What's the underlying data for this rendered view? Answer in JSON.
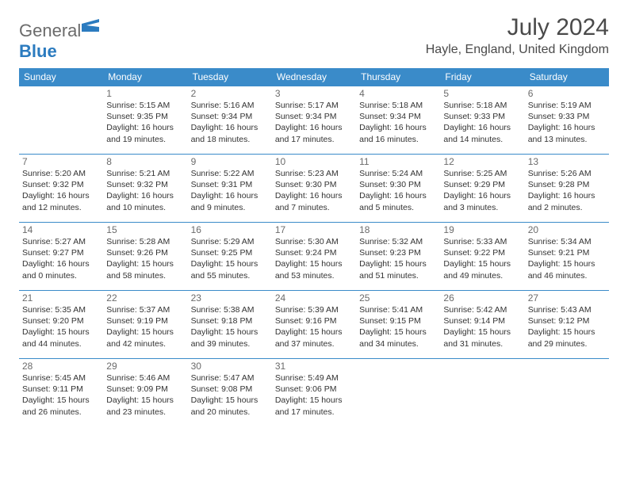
{
  "brand": {
    "part1": "General",
    "part2": "Blue"
  },
  "title": {
    "month": "July 2024",
    "location": "Hayle, England, United Kingdom"
  },
  "colors": {
    "header_bg": "#3a8bc9",
    "header_text": "#ffffff",
    "border": "#3a8bc9",
    "daynum": "#6b6b6b",
    "body_text": "#333333",
    "logo_gray": "#6b6b6b",
    "logo_blue": "#2b7bbf",
    "title_color": "#4a4a4a",
    "background": "#ffffff"
  },
  "typography": {
    "month_fontsize": 30,
    "location_fontsize": 16,
    "dayheader_fontsize": 12,
    "daynum_fontsize": 12,
    "info_fontsize": 10.5
  },
  "layout": {
    "columns": 7,
    "rows": 5,
    "first_day_column": 1
  },
  "day_headers": [
    "Sunday",
    "Monday",
    "Tuesday",
    "Wednesday",
    "Thursday",
    "Friday",
    "Saturday"
  ],
  "days": [
    {
      "n": 1,
      "sunrise": "5:15 AM",
      "sunset": "9:35 PM",
      "daylight": "16 hours and 19 minutes."
    },
    {
      "n": 2,
      "sunrise": "5:16 AM",
      "sunset": "9:34 PM",
      "daylight": "16 hours and 18 minutes."
    },
    {
      "n": 3,
      "sunrise": "5:17 AM",
      "sunset": "9:34 PM",
      "daylight": "16 hours and 17 minutes."
    },
    {
      "n": 4,
      "sunrise": "5:18 AM",
      "sunset": "9:34 PM",
      "daylight": "16 hours and 16 minutes."
    },
    {
      "n": 5,
      "sunrise": "5:18 AM",
      "sunset": "9:33 PM",
      "daylight": "16 hours and 14 minutes."
    },
    {
      "n": 6,
      "sunrise": "5:19 AM",
      "sunset": "9:33 PM",
      "daylight": "16 hours and 13 minutes."
    },
    {
      "n": 7,
      "sunrise": "5:20 AM",
      "sunset": "9:32 PM",
      "daylight": "16 hours and 12 minutes."
    },
    {
      "n": 8,
      "sunrise": "5:21 AM",
      "sunset": "9:32 PM",
      "daylight": "16 hours and 10 minutes."
    },
    {
      "n": 9,
      "sunrise": "5:22 AM",
      "sunset": "9:31 PM",
      "daylight": "16 hours and 9 minutes."
    },
    {
      "n": 10,
      "sunrise": "5:23 AM",
      "sunset": "9:30 PM",
      "daylight": "16 hours and 7 minutes."
    },
    {
      "n": 11,
      "sunrise": "5:24 AM",
      "sunset": "9:30 PM",
      "daylight": "16 hours and 5 minutes."
    },
    {
      "n": 12,
      "sunrise": "5:25 AM",
      "sunset": "9:29 PM",
      "daylight": "16 hours and 3 minutes."
    },
    {
      "n": 13,
      "sunrise": "5:26 AM",
      "sunset": "9:28 PM",
      "daylight": "16 hours and 2 minutes."
    },
    {
      "n": 14,
      "sunrise": "5:27 AM",
      "sunset": "9:27 PM",
      "daylight": "16 hours and 0 minutes."
    },
    {
      "n": 15,
      "sunrise": "5:28 AM",
      "sunset": "9:26 PM",
      "daylight": "15 hours and 58 minutes."
    },
    {
      "n": 16,
      "sunrise": "5:29 AM",
      "sunset": "9:25 PM",
      "daylight": "15 hours and 55 minutes."
    },
    {
      "n": 17,
      "sunrise": "5:30 AM",
      "sunset": "9:24 PM",
      "daylight": "15 hours and 53 minutes."
    },
    {
      "n": 18,
      "sunrise": "5:32 AM",
      "sunset": "9:23 PM",
      "daylight": "15 hours and 51 minutes."
    },
    {
      "n": 19,
      "sunrise": "5:33 AM",
      "sunset": "9:22 PM",
      "daylight": "15 hours and 49 minutes."
    },
    {
      "n": 20,
      "sunrise": "5:34 AM",
      "sunset": "9:21 PM",
      "daylight": "15 hours and 46 minutes."
    },
    {
      "n": 21,
      "sunrise": "5:35 AM",
      "sunset": "9:20 PM",
      "daylight": "15 hours and 44 minutes."
    },
    {
      "n": 22,
      "sunrise": "5:37 AM",
      "sunset": "9:19 PM",
      "daylight": "15 hours and 42 minutes."
    },
    {
      "n": 23,
      "sunrise": "5:38 AM",
      "sunset": "9:18 PM",
      "daylight": "15 hours and 39 minutes."
    },
    {
      "n": 24,
      "sunrise": "5:39 AM",
      "sunset": "9:16 PM",
      "daylight": "15 hours and 37 minutes."
    },
    {
      "n": 25,
      "sunrise": "5:41 AM",
      "sunset": "9:15 PM",
      "daylight": "15 hours and 34 minutes."
    },
    {
      "n": 26,
      "sunrise": "5:42 AM",
      "sunset": "9:14 PM",
      "daylight": "15 hours and 31 minutes."
    },
    {
      "n": 27,
      "sunrise": "5:43 AM",
      "sunset": "9:12 PM",
      "daylight": "15 hours and 29 minutes."
    },
    {
      "n": 28,
      "sunrise": "5:45 AM",
      "sunset": "9:11 PM",
      "daylight": "15 hours and 26 minutes."
    },
    {
      "n": 29,
      "sunrise": "5:46 AM",
      "sunset": "9:09 PM",
      "daylight": "15 hours and 23 minutes."
    },
    {
      "n": 30,
      "sunrise": "5:47 AM",
      "sunset": "9:08 PM",
      "daylight": "15 hours and 20 minutes."
    },
    {
      "n": 31,
      "sunrise": "5:49 AM",
      "sunset": "9:06 PM",
      "daylight": "15 hours and 17 minutes."
    }
  ],
  "labels": {
    "sunrise": "Sunrise:",
    "sunset": "Sunset:",
    "daylight": "Daylight:"
  }
}
